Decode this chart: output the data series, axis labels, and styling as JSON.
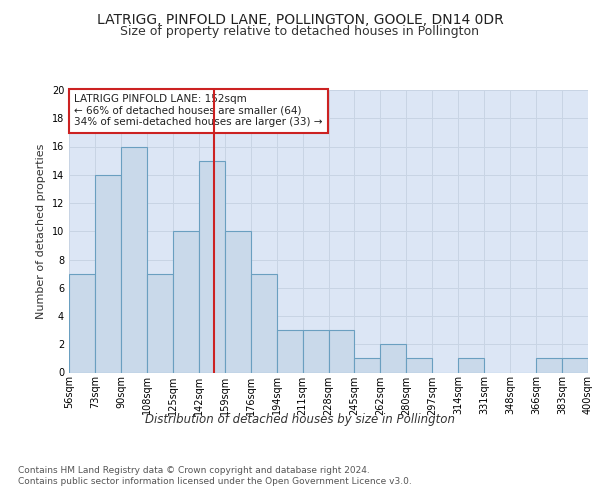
{
  "title": "LATRIGG, PINFOLD LANE, POLLINGTON, GOOLE, DN14 0DR",
  "subtitle": "Size of property relative to detached houses in Pollington",
  "xlabel": "Distribution of detached houses by size in Pollington",
  "ylabel": "Number of detached properties",
  "categories": [
    "56sqm",
    "73sqm",
    "90sqm",
    "108sqm",
    "125sqm",
    "142sqm",
    "159sqm",
    "176sqm",
    "194sqm",
    "211sqm",
    "228sqm",
    "245sqm",
    "262sqm",
    "280sqm",
    "297sqm",
    "314sqm",
    "331sqm",
    "348sqm",
    "366sqm",
    "383sqm",
    "400sqm"
  ],
  "bar_values": [
    7,
    14,
    16,
    7,
    10,
    15,
    10,
    7,
    3,
    3,
    3,
    1,
    2,
    1,
    0,
    1,
    0,
    0,
    1,
    1
  ],
  "bar_color": "#c9d9ea",
  "bar_edgecolor": "#6a9fc0",
  "bar_linewidth": 0.8,
  "grid_color": "#c8d4e4",
  "background_color": "#dce6f5",
  "ylim": [
    0,
    20
  ],
  "yticks": [
    0,
    2,
    4,
    6,
    8,
    10,
    12,
    14,
    16,
    18,
    20
  ],
  "annotation_title": "LATRIGG PINFOLD LANE: 152sqm",
  "annotation_line1": "← 66% of detached houses are smaller (64)",
  "annotation_line2": "34% of semi-detached houses are larger (33) →",
  "annotation_box_facecolor": "#ffffff",
  "annotation_box_edgecolor": "#cc2222",
  "footer_line1": "Contains HM Land Registry data © Crown copyright and database right 2024.",
  "footer_line2": "Contains public sector information licensed under the Open Government Licence v3.0.",
  "title_fontsize": 10,
  "subtitle_fontsize": 9,
  "tick_fontsize": 7,
  "ylabel_fontsize": 8,
  "xlabel_fontsize": 8.5,
  "annotation_fontsize": 7.5,
  "footer_fontsize": 6.5
}
